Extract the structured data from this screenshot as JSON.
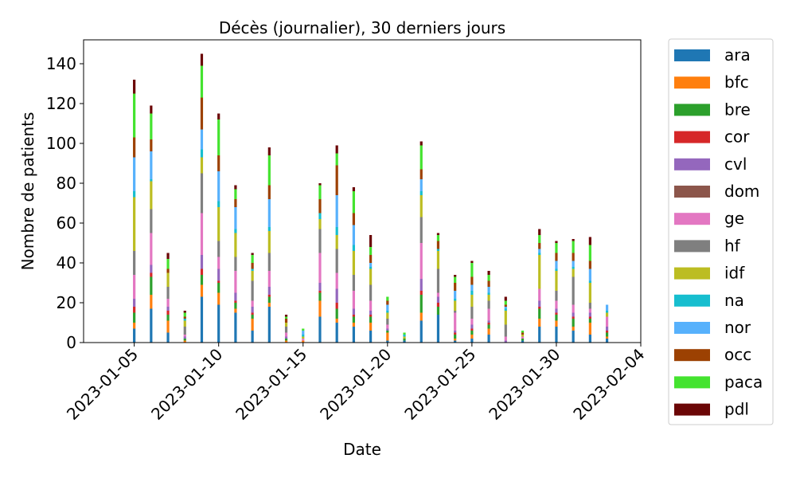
{
  "chart_data": {
    "type": "bar",
    "title": "Décès (journalier), 30 derniers jours",
    "xlabel": "Date",
    "ylabel": "Nombre de patients",
    "ylim": [
      0,
      152
    ],
    "yticks": [
      0,
      20,
      40,
      60,
      80,
      100,
      120,
      140
    ],
    "xlim": [
      "2023-01-02",
      "2023-02-04"
    ],
    "xtick_labels": [
      "2023-01-05",
      "2023-01-10",
      "2023-01-15",
      "2023-01-20",
      "2023-01-25",
      "2023-01-30",
      "2023-02-04"
    ],
    "grid": false,
    "stacked": true,
    "legend_position": "outside-right",
    "dates": [
      "2023-01-05",
      "2023-01-06",
      "2023-01-07",
      "2023-01-08",
      "2023-01-09",
      "2023-01-10",
      "2023-01-11",
      "2023-01-12",
      "2023-01-13",
      "2023-01-14",
      "2023-01-15",
      "2023-01-16",
      "2023-01-17",
      "2023-01-18",
      "2023-01-19",
      "2023-01-20",
      "2023-01-21",
      "2023-01-22",
      "2023-01-23",
      "2023-01-24",
      "2023-01-25",
      "2023-01-26",
      "2023-01-27",
      "2023-01-28",
      "2023-01-29",
      "2023-01-30",
      "2023-01-31",
      "2023-02-01",
      "2023-02-02",
      "2023-02-03"
    ],
    "series": [
      {
        "name": "ara",
        "color": "#1f77b4",
        "values": [
          7,
          17,
          5,
          0,
          23,
          19,
          15,
          6,
          18,
          0,
          0,
          13,
          10,
          8,
          6,
          1,
          1,
          11,
          14,
          1,
          2,
          4,
          0,
          1,
          8,
          8,
          6,
          4,
          2,
          0
        ]
      },
      {
        "name": "bfc",
        "color": "#ff7f0e",
        "values": [
          3,
          7,
          6,
          1,
          6,
          6,
          2,
          6,
          2,
          1,
          1,
          8,
          2,
          2,
          4,
          4,
          0,
          4,
          0,
          1,
          2,
          3,
          0,
          0,
          4,
          3,
          2,
          6,
          1,
          0
        ]
      },
      {
        "name": "bre",
        "color": "#2ca02c",
        "values": [
          5,
          9,
          3,
          1,
          5,
          5,
          3,
          2,
          3,
          1,
          0,
          4,
          5,
          3,
          3,
          1,
          1,
          9,
          4,
          2,
          2,
          2,
          0,
          1,
          5,
          3,
          4,
          2,
          2,
          0
        ]
      },
      {
        "name": "cor",
        "color": "#d62728",
        "values": [
          3,
          2,
          2,
          0,
          3,
          1,
          1,
          1,
          1,
          0,
          0,
          1,
          3,
          1,
          1,
          0,
          0,
          2,
          2,
          1,
          1,
          1,
          0,
          0,
          1,
          1,
          1,
          1,
          1,
          0
        ]
      },
      {
        "name": "cvl",
        "color": "#9467bd",
        "values": [
          4,
          4,
          2,
          1,
          7,
          6,
          4,
          3,
          4,
          1,
          0,
          4,
          7,
          3,
          2,
          1,
          0,
          6,
          3,
          1,
          2,
          1,
          1,
          0,
          3,
          2,
          2,
          2,
          2,
          0
        ]
      },
      {
        "name": "dom",
        "color": "#8c564b",
        "values": [
          0,
          0,
          0,
          0,
          0,
          0,
          0,
          0,
          0,
          0,
          0,
          0,
          0,
          0,
          0,
          0,
          0,
          0,
          0,
          0,
          0,
          0,
          0,
          0,
          0,
          0,
          0,
          0,
          0,
          0
        ]
      },
      {
        "name": "ge",
        "color": "#e377c2",
        "values": [
          12,
          16,
          4,
          1,
          21,
          6,
          11,
          3,
          8,
          2,
          1,
          15,
          8,
          9,
          5,
          2,
          0,
          18,
          2,
          9,
          3,
          6,
          2,
          1,
          6,
          4,
          4,
          2,
          5,
          0
        ]
      },
      {
        "name": "hf",
        "color": "#7f7f7f",
        "values": [
          12,
          12,
          6,
          4,
          20,
          8,
          7,
          10,
          9,
          3,
          0,
          12,
          12,
          8,
          8,
          3,
          0,
          13,
          12,
          1,
          6,
          4,
          6,
          0,
          0,
          5,
          14,
          3,
          0,
          0
        ]
      },
      {
        "name": "idf",
        "color": "#bcbd22",
        "values": [
          27,
          14,
          7,
          3,
          8,
          17,
          12,
          5,
          11,
          2,
          1,
          5,
          7,
          12,
          8,
          3,
          1,
          11,
          9,
          5,
          6,
          3,
          7,
          1,
          17,
          10,
          4,
          10,
          2,
          0
        ]
      },
      {
        "name": "na",
        "color": "#17becf",
        "values": [
          3,
          1,
          0,
          1,
          4,
          3,
          2,
          1,
          2,
          0,
          1,
          3,
          4,
          3,
          1,
          1,
          1,
          2,
          1,
          1,
          2,
          1,
          1,
          0,
          1,
          1,
          1,
          1,
          1,
          0
        ]
      },
      {
        "name": "nor",
        "color": "#57b1fc",
        "values": [
          17,
          14,
          0,
          0,
          10,
          15,
          11,
          0,
          14,
          0,
          2,
          0,
          16,
          10,
          2,
          3,
          0,
          6,
          0,
          4,
          3,
          3,
          1,
          0,
          2,
          4,
          3,
          6,
          3,
          0
        ]
      },
      {
        "name": "occ",
        "color": "#9c4102",
        "values": [
          10,
          6,
          2,
          1,
          16,
          8,
          4,
          3,
          7,
          2,
          0,
          7,
          15,
          6,
          4,
          2,
          0,
          5,
          4,
          4,
          4,
          3,
          1,
          1,
          3,
          4,
          4,
          4,
          0,
          0
        ]
      },
      {
        "name": "paca",
        "color": "#44e32f",
        "values": [
          22,
          13,
          5,
          2,
          16,
          18,
          5,
          4,
          15,
          1,
          1,
          7,
          6,
          11,
          4,
          2,
          1,
          12,
          3,
          3,
          7,
          3,
          2,
          1,
          4,
          5,
          6,
          8,
          0,
          0
        ]
      },
      {
        "name": "pdl",
        "color": "#6b0606",
        "values": [
          7,
          4,
          3,
          1,
          6,
          3,
          2,
          1,
          4,
          1,
          0,
          1,
          4,
          2,
          6,
          0,
          0,
          2,
          1,
          1,
          1,
          2,
          2,
          0,
          3,
          1,
          1,
          4,
          0,
          0
        ]
      }
    ]
  }
}
